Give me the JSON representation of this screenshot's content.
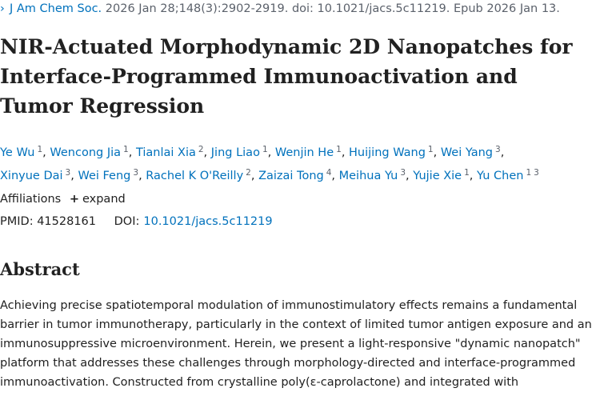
{
  "citation": {
    "chevron": "›",
    "journal": "J Am Chem Soc.",
    "details": "2026 Jan 28;148(3):2902-2919. doi: 10.1021/jacs.5c11219. Epub 2026 Jan 13."
  },
  "title": "NIR-Actuated Morphodynamic 2D Nanopatches for Interface-Programmed Immunoactivation and Tumor Regression",
  "authors": [
    {
      "name": "Ye Wu",
      "aff": "1"
    },
    {
      "name": "Wencong Jia",
      "aff": "1"
    },
    {
      "name": "Tianlai Xia",
      "aff": "2"
    },
    {
      "name": "Jing Liao",
      "aff": "1"
    },
    {
      "name": "Wenjin He",
      "aff": "1"
    },
    {
      "name": "Huijing Wang",
      "aff": "1"
    },
    {
      "name": "Wei Yang",
      "aff": "3"
    },
    {
      "name": "Xinyue Dai",
      "aff": "3"
    },
    {
      "name": "Wei Feng",
      "aff": "3"
    },
    {
      "name": "Rachel K O'Reilly",
      "aff": "2"
    },
    {
      "name": "Zaizai Tong",
      "aff": "4"
    },
    {
      "name": "Meihua Yu",
      "aff": "3"
    },
    {
      "name": "Yujie Xie",
      "aff": "1"
    },
    {
      "name": "Yu Chen",
      "aff": "1",
      "aff2": "3"
    }
  ],
  "affiliations": {
    "label": "Affiliations",
    "expand_label": "expand"
  },
  "ids": {
    "pmid_label": "PMID:",
    "pmid": "41528161",
    "doi_label": "DOI:",
    "doi": "10.1021/jacs.5c11219"
  },
  "abstract": {
    "heading": "Abstract",
    "text": "Achieving precise spatiotemporal modulation of immunostimulatory effects remains a fundamental barrier in tumor immunotherapy, particularly in the context of limited tumor antigen exposure and an immunosuppressive microenvironment. Herein, we present a light-responsive \"dynamic nanopatch\" platform that addresses these challenges through morphology-directed and interface-programmed immunoactivation. Constructed from crystalline poly(ε-caprolactone) and integrated with"
  }
}
